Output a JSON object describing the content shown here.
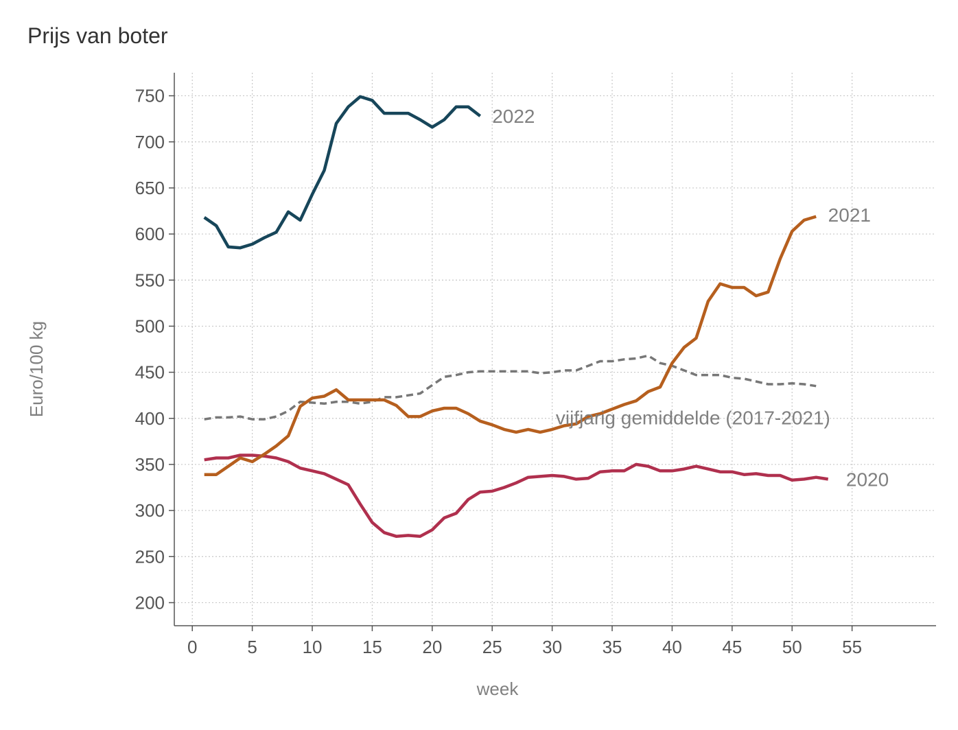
{
  "chart_data": {
    "type": "line",
    "title": "Prijs van boter",
    "xlabel": "week",
    "ylabel": "Euro/100 kg",
    "xlim": [
      -1.5,
      62
    ],
    "ylim": [
      175,
      775
    ],
    "x_ticks": [
      0,
      5,
      10,
      15,
      20,
      25,
      30,
      35,
      40,
      45,
      50,
      55
    ],
    "y_ticks": [
      200,
      250,
      300,
      350,
      400,
      450,
      500,
      550,
      600,
      650,
      700,
      750
    ],
    "grid": true,
    "legend": "none",
    "series": [
      {
        "name": "2022",
        "color": "#17465a",
        "dash": "solid",
        "x": [
          1,
          2,
          3,
          4,
          5,
          6,
          7,
          8,
          9,
          10,
          11,
          12,
          13,
          14,
          15,
          16,
          17,
          18,
          19,
          20,
          21,
          22,
          23,
          24
        ],
        "y": [
          618,
          609,
          586,
          585,
          589,
          596,
          602,
          624,
          615,
          643,
          669,
          720,
          738,
          749,
          745,
          731,
          731,
          731,
          724,
          716,
          724,
          738,
          738,
          728
        ]
      },
      {
        "name": "2021",
        "color": "#b65f1e",
        "dash": "solid",
        "x": [
          1,
          2,
          3,
          4,
          5,
          6,
          7,
          8,
          9,
          10,
          11,
          12,
          13,
          14,
          15,
          16,
          17,
          18,
          19,
          20,
          21,
          22,
          23,
          24,
          25,
          26,
          27,
          28,
          29,
          30,
          31,
          32,
          33,
          34,
          35,
          36,
          37,
          38,
          39,
          40,
          41,
          42,
          43,
          44,
          45,
          46,
          47,
          48,
          49,
          50,
          51,
          52
        ],
        "y": [
          339,
          339,
          348,
          357,
          353,
          361,
          370,
          381,
          413,
          422,
          424,
          431,
          420,
          420,
          420,
          420,
          414,
          402,
          402,
          408,
          411,
          411,
          405,
          397,
          393,
          388,
          385,
          388,
          385,
          388,
          392,
          394,
          402,
          405,
          410,
          415,
          419,
          429,
          434,
          460,
          477,
          487,
          527,
          546,
          542,
          542,
          533,
          537,
          573,
          603,
          615,
          619
        ]
      },
      {
        "name": "2020",
        "color": "#b0304e",
        "dash": "solid",
        "x": [
          1,
          2,
          3,
          4,
          5,
          6,
          7,
          8,
          9,
          10,
          11,
          12,
          13,
          14,
          15,
          16,
          17,
          18,
          19,
          20,
          21,
          22,
          23,
          24,
          25,
          26,
          27,
          28,
          29,
          30,
          31,
          32,
          33,
          34,
          35,
          36,
          37,
          38,
          39,
          40,
          41,
          42,
          43,
          44,
          45,
          46,
          47,
          48,
          49,
          50,
          51,
          52,
          53
        ],
        "y": [
          355,
          357,
          357,
          360,
          360,
          359,
          357,
          353,
          346,
          343,
          340,
          334,
          328,
          307,
          287,
          276,
          272,
          273,
          272,
          279,
          292,
          297,
          312,
          320,
          321,
          325,
          330,
          336,
          337,
          338,
          337,
          334,
          335,
          342,
          343,
          343,
          350,
          348,
          343,
          343,
          345,
          348,
          345,
          342,
          342,
          339,
          340,
          338,
          338,
          333,
          334,
          336,
          334
        ]
      },
      {
        "name": "vijfjarig gemiddelde (2017-2021)",
        "color": "#777777",
        "dash": "dashed",
        "x": [
          1,
          2,
          3,
          4,
          5,
          6,
          7,
          8,
          9,
          10,
          11,
          12,
          13,
          14,
          15,
          16,
          17,
          18,
          19,
          20,
          21,
          22,
          23,
          24,
          25,
          26,
          27,
          28,
          29,
          30,
          31,
          32,
          33,
          34,
          35,
          36,
          37,
          38,
          39,
          40,
          41,
          42,
          43,
          44,
          45,
          46,
          47,
          48,
          49,
          50,
          51,
          52
        ],
        "y": [
          399,
          401,
          401,
          402,
          399,
          399,
          402,
          408,
          418,
          417,
          416,
          418,
          418,
          416,
          418,
          423,
          423,
          425,
          427,
          436,
          445,
          447,
          450,
          451,
          451,
          451,
          451,
          451,
          449,
          450,
          452,
          452,
          457,
          462,
          462,
          464,
          465,
          468,
          460,
          457,
          452,
          447,
          447,
          447,
          444,
          443,
          440,
          437,
          437,
          438,
          437,
          435
        ]
      }
    ],
    "annotations": [
      {
        "text": "2022",
        "x": 25,
        "y": 728
      },
      {
        "text": "2021",
        "x": 53,
        "y": 621
      },
      {
        "text": "2020",
        "x": 54.5,
        "y": 334
      },
      {
        "text": "vijfjarig gemiddelde (2017-2021)",
        "x": 30.3,
        "y": 401
      }
    ]
  }
}
